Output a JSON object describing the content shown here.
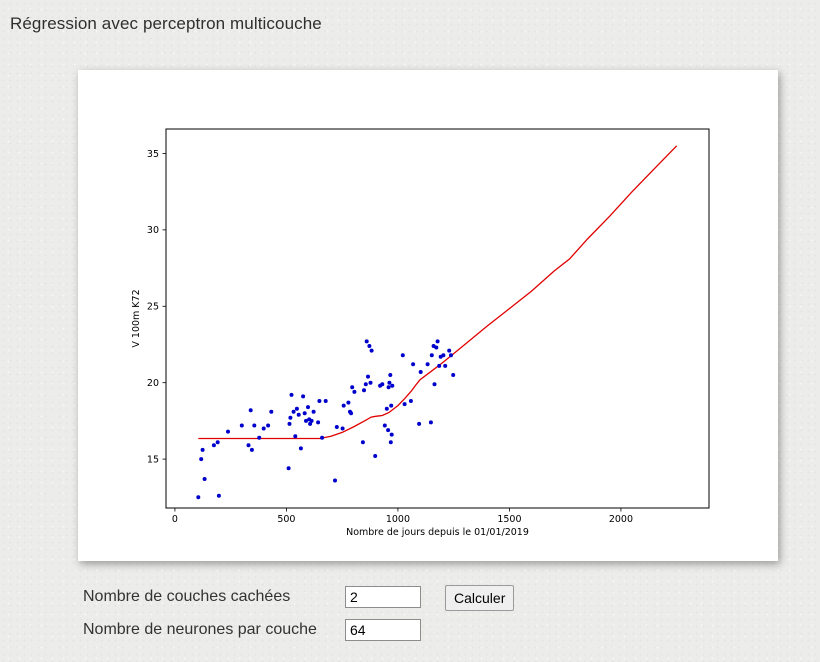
{
  "page": {
    "title": "Régression avec perceptron multicouche"
  },
  "form": {
    "layers_label": "Nombre de couches cachées",
    "layers_value": "2",
    "neurons_label": "Nombre de neurones par couche",
    "neurons_value": "64",
    "submit_label": "Calculer"
  },
  "chart_data": {
    "type": "scatter",
    "xlabel": "Nombre de jours depuis le 01/01/2019",
    "ylabel": "V 100m K72",
    "xlim": [
      -40,
      2395
    ],
    "ylim": [
      11.8,
      36.6
    ],
    "x_ticks": [
      0,
      500,
      1000,
      1500,
      2000
    ],
    "y_ticks": [
      15,
      20,
      25,
      30,
      35
    ],
    "grid": false,
    "series": [
      {
        "kind": "points",
        "color": "#0000cc",
        "points": [
          [
            105,
            12.5
          ],
          [
            118,
            15.0
          ],
          [
            124,
            15.6
          ],
          [
            133,
            13.7
          ],
          [
            175,
            15.9
          ],
          [
            192,
            16.1
          ],
          [
            197,
            12.6
          ],
          [
            238,
            16.8
          ],
          [
            300,
            17.2
          ],
          [
            330,
            15.9
          ],
          [
            340,
            18.2
          ],
          [
            345,
            15.6
          ],
          [
            356,
            17.2
          ],
          [
            378,
            16.4
          ],
          [
            398,
            17.0
          ],
          [
            418,
            17.2
          ],
          [
            432,
            18.1
          ],
          [
            510,
            14.4
          ],
          [
            514,
            17.3
          ],
          [
            518,
            17.7
          ],
          [
            523,
            19.2
          ],
          [
            532,
            18.1
          ],
          [
            540,
            16.5
          ],
          [
            547,
            18.3
          ],
          [
            555,
            17.9
          ],
          [
            565,
            15.7
          ],
          [
            575,
            19.1
          ],
          [
            582,
            18.0
          ],
          [
            588,
            17.5
          ],
          [
            597,
            18.4
          ],
          [
            602,
            17.6
          ],
          [
            606,
            17.3
          ],
          [
            613,
            17.5
          ],
          [
            622,
            18.1
          ],
          [
            642,
            17.4
          ],
          [
            648,
            18.8
          ],
          [
            660,
            16.4
          ],
          [
            676,
            18.8
          ],
          [
            718,
            13.6
          ],
          [
            726,
            17.1
          ],
          [
            752,
            17.0
          ],
          [
            757,
            18.5
          ],
          [
            778,
            18.7
          ],
          [
            785,
            18.1
          ],
          [
            790,
            18.0
          ],
          [
            795,
            19.7
          ],
          [
            805,
            19.4
          ],
          [
            843,
            16.1
          ],
          [
            848,
            19.5
          ],
          [
            856,
            19.9
          ],
          [
            860,
            22.7
          ],
          [
            866,
            20.4
          ],
          [
            872,
            22.4
          ],
          [
            877,
            20.0
          ],
          [
            882,
            22.1
          ],
          [
            898,
            15.2
          ],
          [
            920,
            19.8
          ],
          [
            930,
            19.9
          ],
          [
            941,
            17.2
          ],
          [
            950,
            18.3
          ],
          [
            956,
            16.9
          ],
          [
            958,
            19.7
          ],
          [
            962,
            20.0
          ],
          [
            966,
            20.5
          ],
          [
            968,
            16.1
          ],
          [
            970,
            18.5
          ],
          [
            972,
            16.6
          ],
          [
            975,
            19.8
          ],
          [
            1022,
            21.8
          ],
          [
            1030,
            18.6
          ],
          [
            1058,
            18.8
          ],
          [
            1068,
            21.2
          ],
          [
            1095,
            17.3
          ],
          [
            1102,
            20.7
          ],
          [
            1133,
            21.2
          ],
          [
            1148,
            17.4
          ],
          [
            1152,
            21.8
          ],
          [
            1160,
            22.4
          ],
          [
            1164,
            19.9
          ],
          [
            1172,
            22.3
          ],
          [
            1178,
            22.7
          ],
          [
            1185,
            21.1
          ],
          [
            1192,
            21.7
          ],
          [
            1204,
            21.8
          ],
          [
            1212,
            21.1
          ],
          [
            1230,
            22.1
          ],
          [
            1238,
            21.8
          ],
          [
            1248,
            20.5
          ]
        ]
      },
      {
        "kind": "line",
        "color": "#e00000",
        "points": [
          [
            105,
            16.35
          ],
          [
            200,
            16.35
          ],
          [
            300,
            16.35
          ],
          [
            400,
            16.35
          ],
          [
            500,
            16.35
          ],
          [
            600,
            16.35
          ],
          [
            650,
            16.35
          ],
          [
            700,
            16.5
          ],
          [
            750,
            16.75
          ],
          [
            800,
            17.1
          ],
          [
            850,
            17.5
          ],
          [
            880,
            17.75
          ],
          [
            900,
            17.8
          ],
          [
            930,
            17.85
          ],
          [
            960,
            18.05
          ],
          [
            1000,
            18.5
          ],
          [
            1030,
            18.95
          ],
          [
            1060,
            19.45
          ],
          [
            1080,
            19.85
          ],
          [
            1100,
            20.2
          ],
          [
            1150,
            20.75
          ],
          [
            1200,
            21.3
          ],
          [
            1250,
            21.9
          ],
          [
            1300,
            22.5
          ],
          [
            1400,
            23.7
          ],
          [
            1500,
            24.85
          ],
          [
            1600,
            26.0
          ],
          [
            1700,
            27.3
          ],
          [
            1770,
            28.1
          ],
          [
            1850,
            29.4
          ],
          [
            1950,
            30.9
          ],
          [
            2050,
            32.5
          ],
          [
            2150,
            34.0
          ],
          [
            2250,
            35.5
          ]
        ]
      }
    ]
  }
}
